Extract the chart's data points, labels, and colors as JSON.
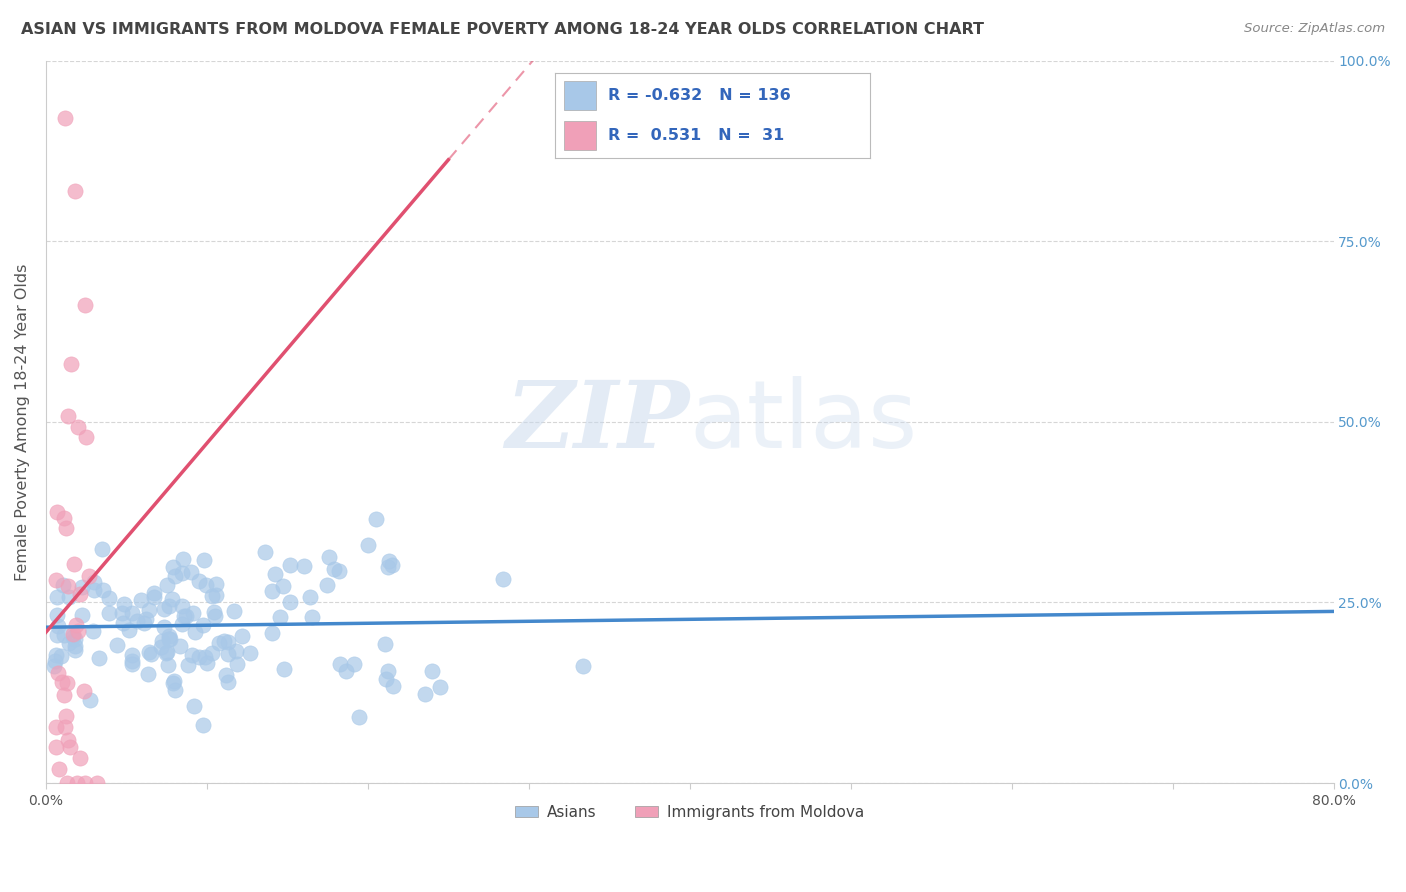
{
  "title": "ASIAN VS IMMIGRANTS FROM MOLDOVA FEMALE POVERTY AMONG 18-24 YEAR OLDS CORRELATION CHART",
  "source": "Source: ZipAtlas.com",
  "ylabel": "Female Poverty Among 18-24 Year Olds",
  "xlim": [
    0.0,
    0.8
  ],
  "ylim": [
    0.0,
    1.0
  ],
  "xticks": [
    0.0,
    0.1,
    0.2,
    0.3,
    0.4,
    0.5,
    0.6,
    0.7,
    0.8
  ],
  "xticklabels": [
    "0.0%",
    "",
    "",
    "",
    "",
    "",
    "",
    "",
    "80.0%"
  ],
  "yticks": [
    0.0,
    0.25,
    0.5,
    0.75,
    1.0
  ],
  "yticklabels": [
    "0.0%",
    "25.0%",
    "50.0%",
    "75.0%",
    "100.0%"
  ],
  "blue_R": -0.632,
  "blue_N": 136,
  "pink_R": 0.531,
  "pink_N": 31,
  "blue_color": "#a8c8e8",
  "pink_color": "#f0a0b8",
  "blue_line_color": "#4488cc",
  "pink_line_color": "#e05070",
  "legend_label_blue": "Asians",
  "legend_label_pink": "Immigrants from Moldova",
  "watermark_zip": "ZIP",
  "watermark_atlas": "atlas",
  "background_color": "#ffffff",
  "grid_color": "#cccccc",
  "title_color": "#444444",
  "axis_label_color": "#555555",
  "right_tick_color": "#5599cc",
  "seed": 7
}
